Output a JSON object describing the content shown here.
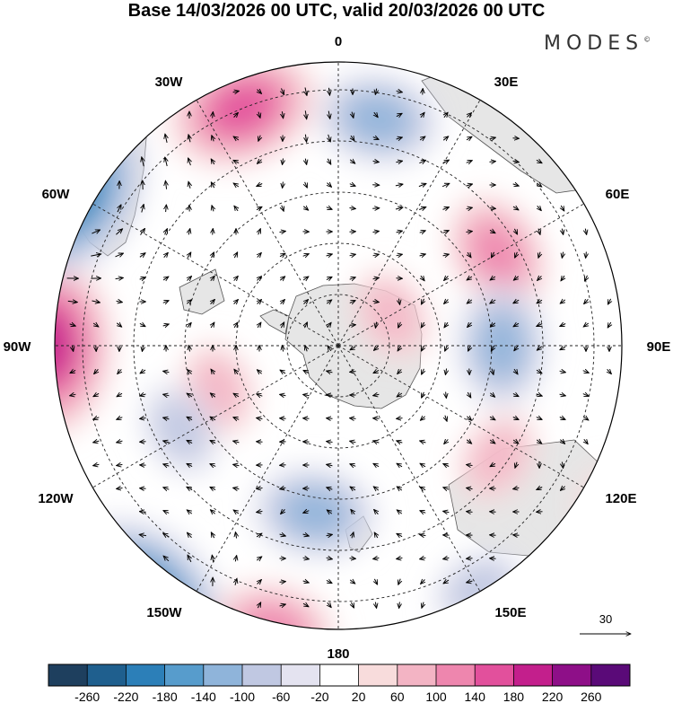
{
  "title": "Base 14/03/2026 00 UTC, valid 20/03/2026 00 UTC",
  "logo": "MODES",
  "logo_mark": "©",
  "longitude_labels": {
    "lon_0": "0",
    "lon_30e": "30E",
    "lon_60e": "60E",
    "lon_90e": "90E",
    "lon_120e": "120E",
    "lon_150e": "150E",
    "lon_180": "180",
    "lon_150w": "150W",
    "lon_120w": "120W",
    "lon_90w": "90W",
    "lon_60w": "60W",
    "lon_30w": "30W"
  },
  "reference_vector": {
    "label": "30"
  },
  "colorbar": {
    "ticks": [
      "-260",
      "-220",
      "-180",
      "-140",
      "-100",
      "-60",
      "-20",
      "20",
      "60",
      "100",
      "140",
      "180",
      "220",
      "260"
    ],
    "colors": [
      "#1e3f5e",
      "#1f5f8e",
      "#2c7fb8",
      "#579ccc",
      "#8fb4da",
      "#c0c8e2",
      "#e4e3f0",
      "#ffffff",
      "#f8dcdc",
      "#f3b4c4",
      "#ee86ae",
      "#e2509c",
      "#c31f8c",
      "#8e0f88",
      "#5a0a78"
    ]
  },
  "anomaly_centers": [
    {
      "lon": -90,
      "colat": 57,
      "value": 180
    },
    {
      "lon": -60,
      "colat": 60,
      "value": -180
    },
    {
      "lon": -142,
      "colat": 62,
      "value": -200
    },
    {
      "lon": -22,
      "colat": 50,
      "value": 140
    },
    {
      "lon": 10,
      "colat": 45,
      "value": -120
    },
    {
      "lon": 60,
      "colat": 36,
      "value": 120
    },
    {
      "lon": 90,
      "colat": 32,
      "value": -100
    },
    {
      "lon": -167,
      "colat": 57,
      "value": 100
    },
    {
      "lon": -172,
      "colat": 33,
      "value": -100
    },
    {
      "lon": 125,
      "colat": 38,
      "value": 60
    },
    {
      "lon": -110,
      "colat": 25,
      "value": 60
    },
    {
      "lon": 60,
      "colat": 12,
      "value": 60
    },
    {
      "lon": 150,
      "colat": 55,
      "value": -60
    },
    {
      "lon": 120,
      "colat": 60,
      "value": 40
    },
    {
      "lon": -118,
      "colat": 35,
      "value": -60
    }
  ]
}
